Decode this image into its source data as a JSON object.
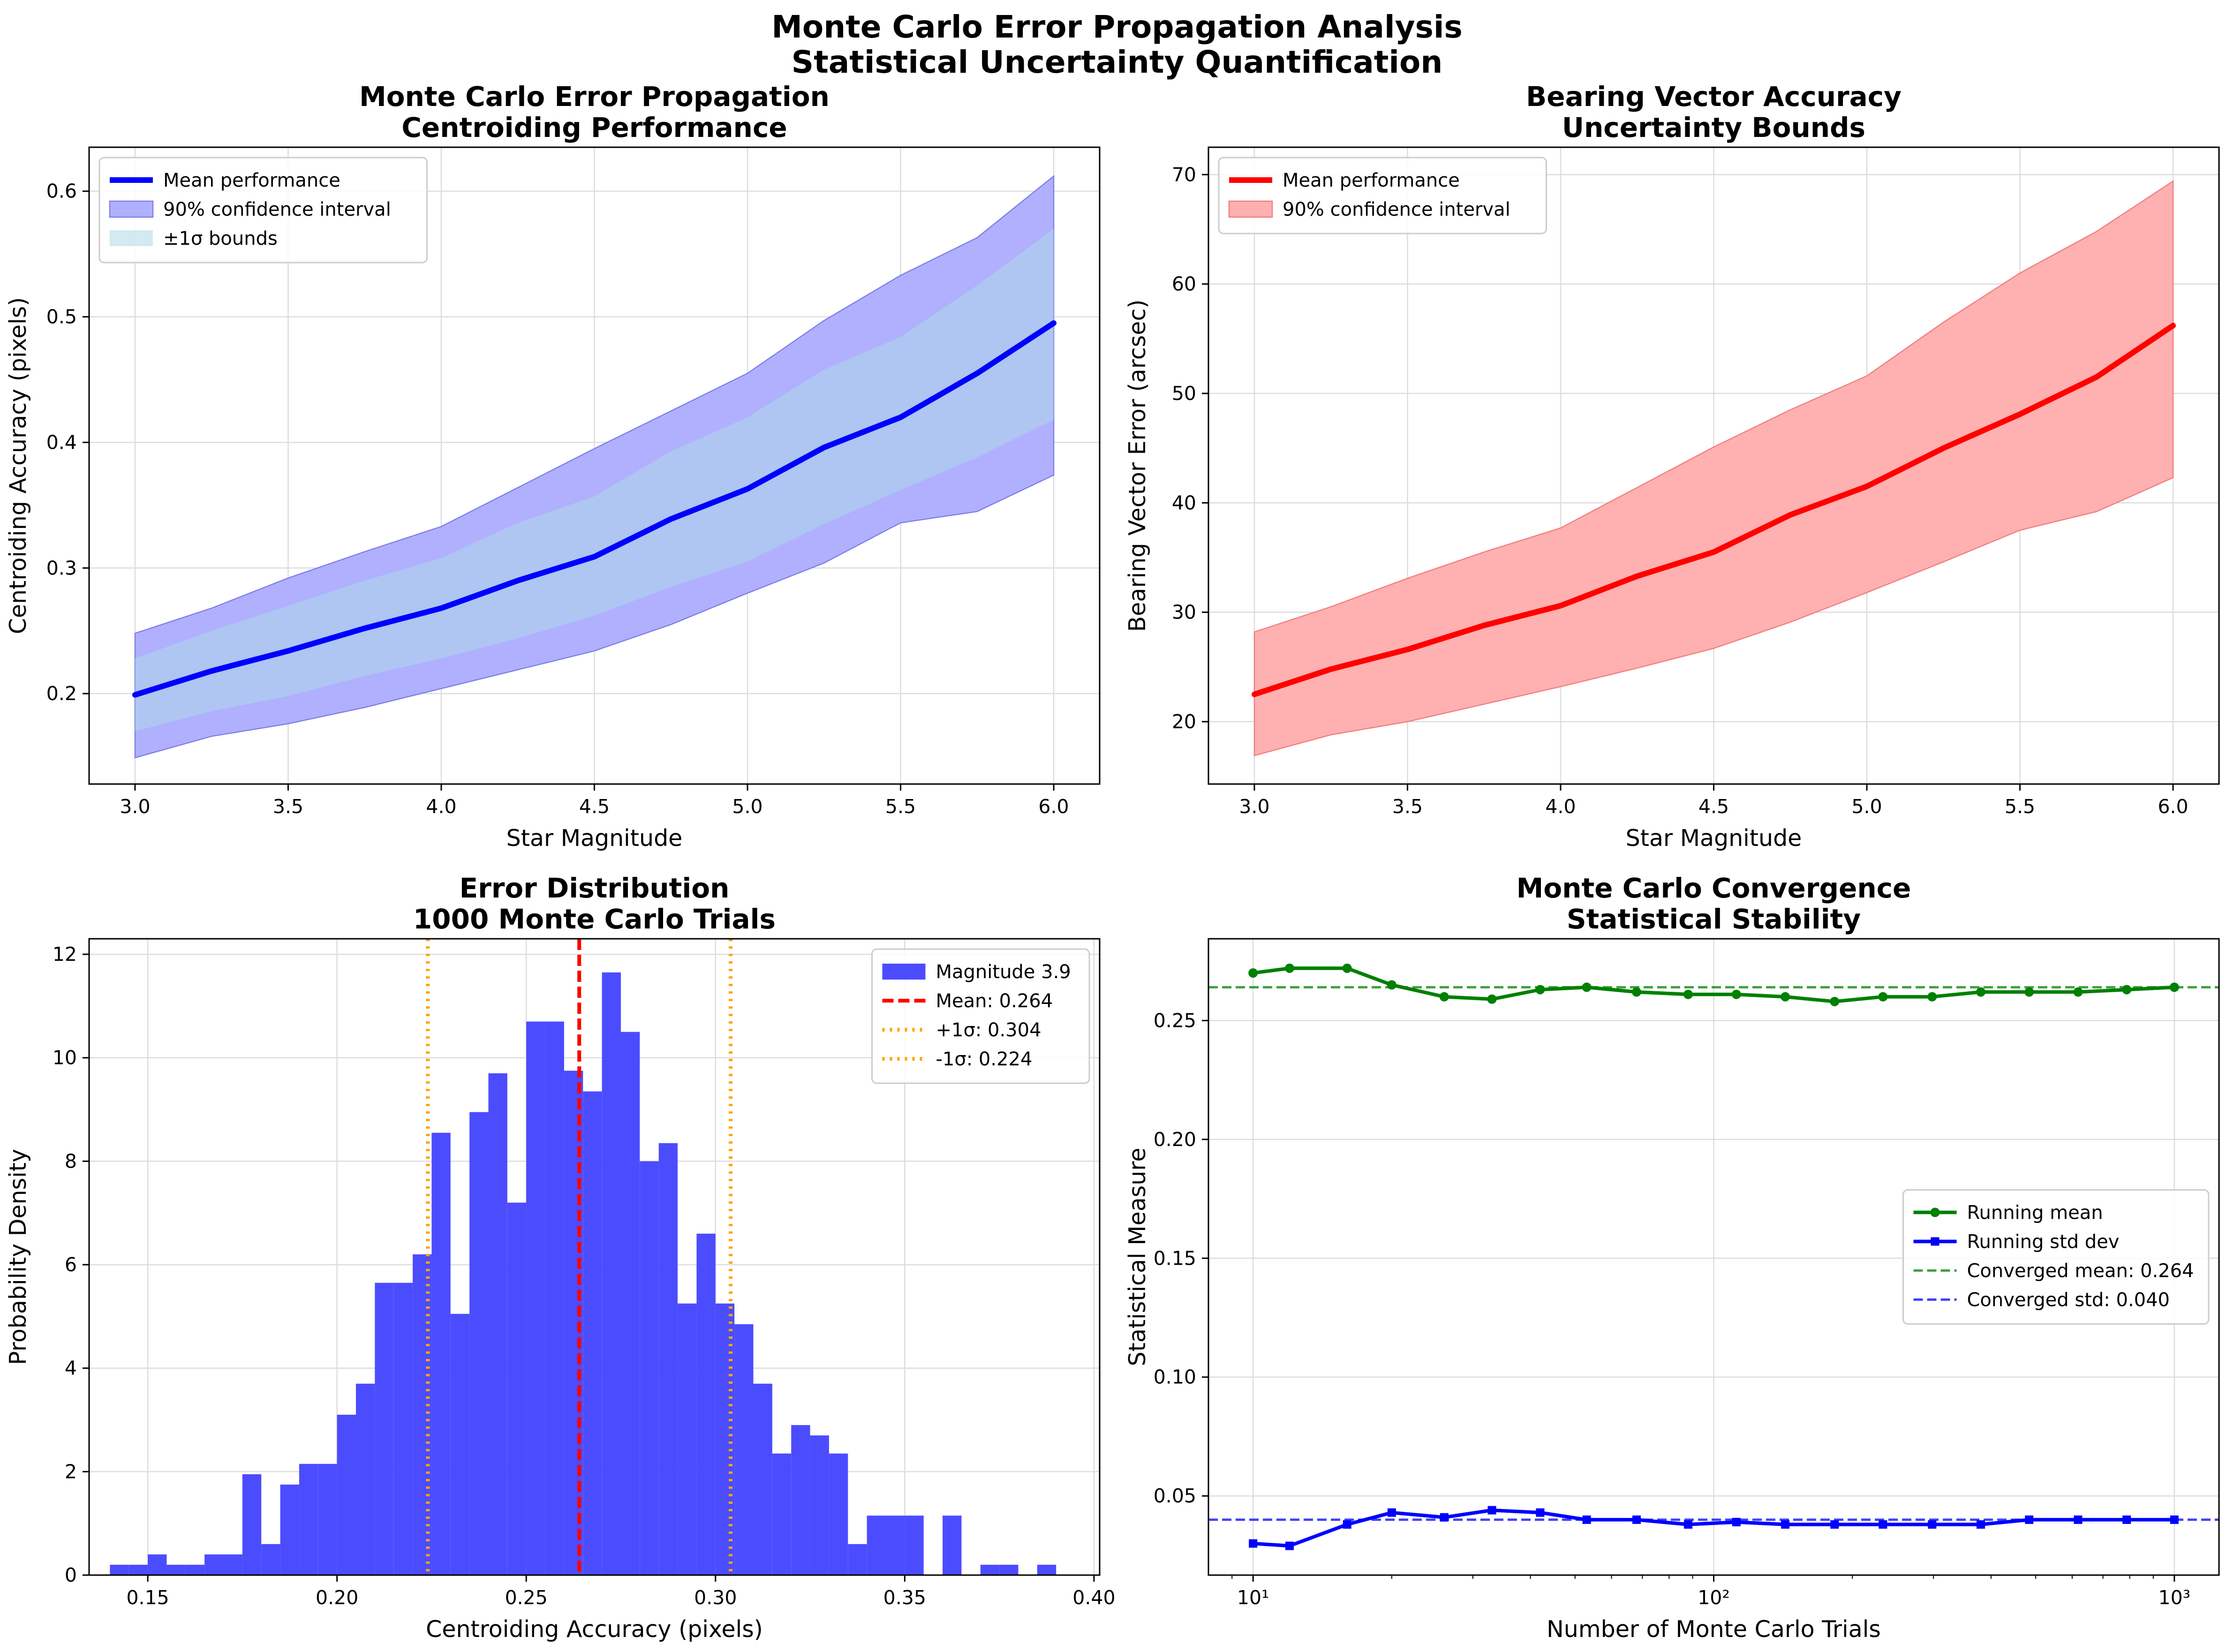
{
  "figure": {
    "title_line1": "Monte Carlo Error Propagation Analysis",
    "title_line2": "Statistical Uncertainty Quantification"
  },
  "chart_data": [
    {
      "type": "line",
      "title": [
        "Monte Carlo Error Propagation",
        "Centroiding Performance"
      ],
      "xlabel": "Star Magnitude",
      "ylabel": "Centroiding Accuracy (pixels)",
      "xlim": [
        2.85,
        6.15
      ],
      "ylim": [
        0.128,
        0.635
      ],
      "xticks": [
        3.0,
        3.5,
        4.0,
        4.5,
        5.0,
        5.5,
        6.0
      ],
      "xtick_labels": [
        "3.0",
        "3.5",
        "4.0",
        "4.5",
        "5.0",
        "5.5",
        "6.0"
      ],
      "yticks": [
        0.2,
        0.3,
        0.4,
        0.5,
        0.6
      ],
      "ytick_labels": [
        "0.2",
        "0.3",
        "0.4",
        "0.5",
        "0.6"
      ],
      "grid": true,
      "legend_position": "upper-left",
      "colors": {
        "mean": "#0000ff",
        "ci": "#b0b0ff",
        "ci_edge": "#7f7fe8",
        "sigma": "#add8e6"
      },
      "x": [
        3.0,
        3.25,
        3.5,
        3.75,
        4.0,
        4.25,
        4.5,
        4.75,
        5.0,
        5.25,
        5.5,
        5.75,
        6.0
      ],
      "series": [
        {
          "name": "Mean performance",
          "role": "line",
          "values": [
            0.199,
            0.218,
            0.234,
            0.252,
            0.268,
            0.29,
            0.309,
            0.339,
            0.363,
            0.396,
            0.42,
            0.455,
            0.495
          ]
        },
        {
          "name": "90% confidence interval",
          "role": "band",
          "lower": [
            0.149,
            0.166,
            0.176,
            0.189,
            0.204,
            0.219,
            0.234,
            0.255,
            0.28,
            0.304,
            0.336,
            0.345,
            0.374
          ],
          "upper": [
            0.248,
            0.268,
            0.292,
            0.313,
            0.333,
            0.364,
            0.395,
            0.425,
            0.455,
            0.497,
            0.533,
            0.563,
            0.612
          ]
        },
        {
          "name": "±1σ bounds",
          "role": "band",
          "lower": [
            0.17,
            0.186,
            0.198,
            0.214,
            0.228,
            0.244,
            0.262,
            0.285,
            0.305,
            0.335,
            0.362,
            0.388,
            0.418
          ],
          "upper": [
            0.228,
            0.25,
            0.27,
            0.29,
            0.308,
            0.336,
            0.357,
            0.393,
            0.42,
            0.458,
            0.484,
            0.525,
            0.57
          ]
        }
      ]
    },
    {
      "type": "line",
      "title": [
        "Bearing Vector Accuracy",
        "Uncertainty Bounds"
      ],
      "xlabel": "Star Magnitude",
      "ylabel": "Bearing Vector Error (arcsec)",
      "xlim": [
        2.85,
        6.15
      ],
      "ylim": [
        14.3,
        72.5
      ],
      "xticks": [
        3.0,
        3.5,
        4.0,
        4.5,
        5.0,
        5.5,
        6.0
      ],
      "xtick_labels": [
        "3.0",
        "3.5",
        "4.0",
        "4.5",
        "5.0",
        "5.5",
        "6.0"
      ],
      "yticks": [
        20,
        30,
        40,
        50,
        60,
        70
      ],
      "ytick_labels": [
        "20",
        "30",
        "40",
        "50",
        "60",
        "70"
      ],
      "grid": true,
      "legend_position": "upper-left",
      "colors": {
        "mean": "#ff0000",
        "ci": "#ffb0b0",
        "ci_edge": "#f08080"
      },
      "x": [
        3.0,
        3.25,
        3.5,
        3.75,
        4.0,
        4.25,
        4.5,
        4.75,
        5.0,
        5.25,
        5.5,
        5.75,
        6.0
      ],
      "series": [
        {
          "name": "Mean performance",
          "role": "line",
          "values": [
            22.5,
            24.8,
            26.6,
            28.8,
            30.6,
            33.3,
            35.5,
            38.9,
            41.5,
            45.0,
            48.1,
            51.5,
            56.2
          ]
        },
        {
          "name": "90% confidence interval",
          "role": "band",
          "lower": [
            16.9,
            18.8,
            20.0,
            21.6,
            23.2,
            24.9,
            26.7,
            29.1,
            31.8,
            34.6,
            37.5,
            39.2,
            42.3
          ],
          "upper": [
            28.2,
            30.5,
            33.1,
            35.5,
            37.7,
            41.4,
            45.1,
            48.5,
            51.6,
            56.5,
            61.0,
            64.8,
            69.4
          ]
        }
      ]
    },
    {
      "type": "bar",
      "subtype": "histogram",
      "title": [
        "Error Distribution",
        "1000 Monte Carlo Trials"
      ],
      "xlabel": "Centroiding Accuracy (pixels)",
      "ylabel": "Probability Density",
      "xlim": [
        0.1345,
        0.4015
      ],
      "ylim": [
        0,
        12.3
      ],
      "xticks": [
        0.15,
        0.2,
        0.25,
        0.3,
        0.35,
        0.4
      ],
      "xtick_labels": [
        "0.15",
        "0.20",
        "0.25",
        "0.30",
        "0.35",
        "0.40"
      ],
      "yticks": [
        0,
        2,
        4,
        6,
        8,
        10,
        12
      ],
      "ytick_labels": [
        "0",
        "2",
        "4",
        "6",
        "8",
        "10",
        "12"
      ],
      "grid": true,
      "legend_position": "upper-right",
      "colors": {
        "bars": "#4c4cff",
        "mean": "#ff0000",
        "sigma": "#ffa500"
      },
      "bin_start": 0.14,
      "bin_width": 0.005,
      "series": [
        {
          "name": "Magnitude 3.9",
          "values": [
            0.2,
            0.2,
            0.4,
            0.2,
            0.2,
            0.4,
            0.4,
            1.95,
            0.6,
            1.75,
            2.15,
            2.15,
            3.1,
            3.7,
            5.65,
            5.65,
            6.2,
            8.55,
            5.05,
            8.95,
            9.7,
            7.2,
            10.7,
            10.7,
            9.75,
            9.35,
            11.65,
            10.5,
            8.0,
            8.35,
            5.25,
            6.6,
            5.25,
            4.85,
            3.7,
            2.35,
            2.9,
            2.7,
            2.35,
            0.6,
            1.15,
            1.15,
            1.15,
            0.0,
            1.15,
            0.0,
            0.2,
            0.2,
            0.0,
            0.2
          ]
        }
      ],
      "reference_lines": [
        {
          "name": "Mean: 0.264",
          "x": 0.264,
          "style": "dashed",
          "color": "#ff0000"
        },
        {
          "name": "+1σ: 0.304",
          "x": 0.304,
          "style": "dotted",
          "color": "#ffa500"
        },
        {
          "name": "-1σ: 0.224",
          "x": 0.224,
          "style": "dotted",
          "color": "#ffa500"
        }
      ]
    },
    {
      "type": "line",
      "title": [
        "Monte Carlo Convergence",
        "Statistical Stability"
      ],
      "xlabel": "Number of Monte Carlo Trials",
      "ylabel": "Statistical Measure",
      "xscale": "log",
      "xlim": [
        8.0,
        1250
      ],
      "ylim": [
        0.0167,
        0.2844
      ],
      "xticks": [
        10,
        100,
        1000
      ],
      "xtick_labels": [
        "10¹",
        "10²",
        "10³"
      ],
      "yticks": [
        0.05,
        0.1,
        0.15,
        0.2,
        0.25
      ],
      "ytick_labels": [
        "0.05",
        "0.10",
        "0.15",
        "0.20",
        "0.25"
      ],
      "grid": true,
      "legend_position": "center-right",
      "colors": {
        "mean": "#008000",
        "std": "#0000ff"
      },
      "x": [
        10,
        12,
        16,
        20,
        26,
        33,
        42,
        53,
        68,
        88,
        112,
        143,
        183,
        233,
        298,
        380,
        484,
        618,
        788,
        1000
      ],
      "series": [
        {
          "name": "Running mean",
          "marker": "circle",
          "values": [
            0.27,
            0.272,
            0.272,
            0.265,
            0.26,
            0.259,
            0.263,
            0.264,
            0.262,
            0.261,
            0.261,
            0.26,
            0.258,
            0.26,
            0.26,
            0.262,
            0.262,
            0.262,
            0.263,
            0.264
          ]
        },
        {
          "name": "Running std dev",
          "marker": "square",
          "values": [
            0.03,
            0.029,
            0.038,
            0.043,
            0.041,
            0.044,
            0.043,
            0.04,
            0.04,
            0.038,
            0.039,
            0.038,
            0.038,
            0.038,
            0.038,
            0.038,
            0.04,
            0.04,
            0.04,
            0.04
          ]
        }
      ],
      "reference_lines": [
        {
          "name": "Converged mean: 0.264",
          "y": 0.264,
          "style": "dashed",
          "color": "#008000"
        },
        {
          "name": "Converged std: 0.040",
          "y": 0.04,
          "style": "dashed",
          "color": "#0000ff"
        }
      ]
    }
  ]
}
